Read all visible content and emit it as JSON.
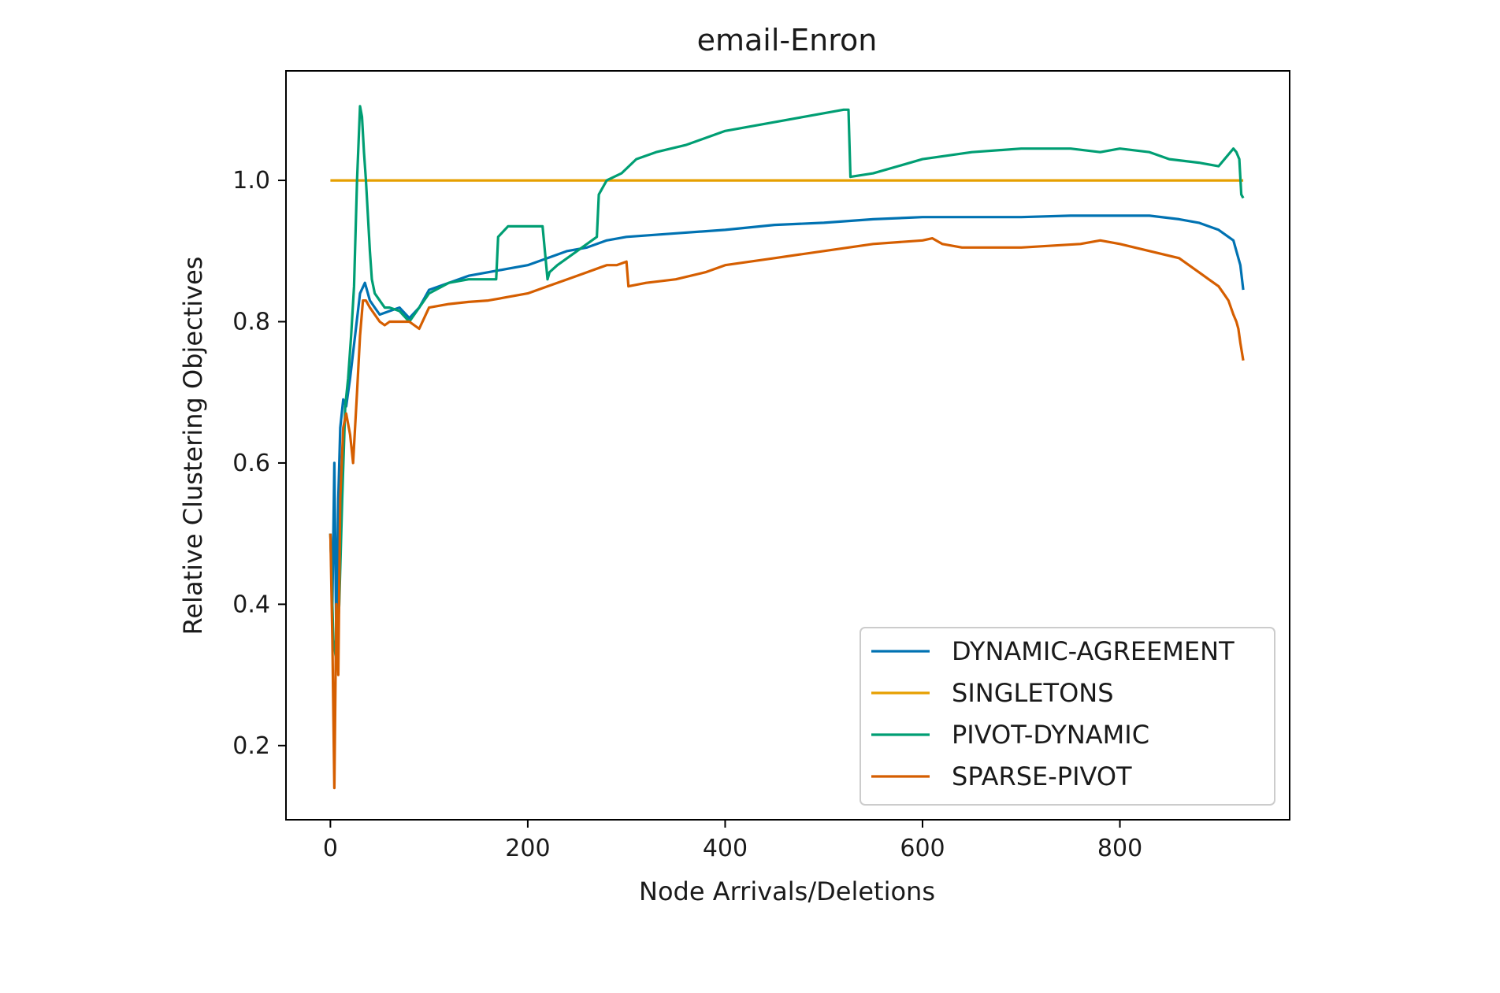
{
  "chart_data": {
    "type": "line",
    "title": "email-Enron",
    "xlabel": "Node Arrivals/Deletions",
    "ylabel": "Relative Clustering Objectives",
    "xlim": [
      -45,
      972
    ],
    "ylim": [
      0.095,
      1.155
    ],
    "xticks": [
      0,
      200,
      400,
      600,
      800
    ],
    "xtick_labels": [
      "0",
      "200",
      "400",
      "600",
      "800"
    ],
    "yticks": [
      0.2,
      0.4,
      0.6,
      0.8,
      1.0
    ],
    "ytick_labels": [
      "0.2",
      "0.4",
      "0.6",
      "0.8",
      "1.0"
    ],
    "grid": false,
    "legend_position": "lower-right",
    "series": [
      {
        "name": "DYNAMIC-AGREEMENT",
        "color": "#0072b2",
        "x": [
          0,
          2,
          4,
          6,
          8,
          10,
          13,
          16,
          20,
          25,
          30,
          35,
          40,
          45,
          50,
          60,
          70,
          80,
          90,
          100,
          120,
          140,
          160,
          180,
          200,
          220,
          240,
          260,
          280,
          300,
          350,
          400,
          450,
          500,
          550,
          600,
          650,
          700,
          750,
          800,
          830,
          860,
          880,
          900,
          915,
          922,
          925
        ],
        "y": [
          0.5,
          0.4,
          0.6,
          0.35,
          0.55,
          0.65,
          0.69,
          0.68,
          0.72,
          0.78,
          0.84,
          0.855,
          0.83,
          0.82,
          0.81,
          0.815,
          0.82,
          0.805,
          0.82,
          0.845,
          0.855,
          0.865,
          0.87,
          0.875,
          0.88,
          0.89,
          0.9,
          0.905,
          0.915,
          0.92,
          0.925,
          0.93,
          0.937,
          0.94,
          0.945,
          0.948,
          0.948,
          0.948,
          0.95,
          0.95,
          0.95,
          0.945,
          0.94,
          0.93,
          0.915,
          0.88,
          0.845
        ]
      },
      {
        "name": "SINGLETONS",
        "color": "#e69f00",
        "x": [
          0,
          925
        ],
        "y": [
          1.0,
          1.0
        ]
      },
      {
        "name": "PIVOT-DYNAMIC",
        "color": "#009e73",
        "x": [
          0,
          3,
          6,
          9,
          12,
          15,
          18,
          21,
          24,
          27,
          30,
          32,
          34,
          36,
          38,
          40,
          42,
          45,
          50,
          55,
          60,
          70,
          80,
          90,
          100,
          120,
          140,
          160,
          168,
          170,
          180,
          200,
          215,
          220,
          222,
          230,
          250,
          270,
          272,
          280,
          295,
          310,
          330,
          360,
          400,
          440,
          480,
          500,
          520,
          525,
          527,
          550,
          600,
          650,
          700,
          750,
          780,
          800,
          830,
          850,
          880,
          900,
          915,
          918,
          921,
          923,
          925
        ],
        "y": [
          0.5,
          0.35,
          0.32,
          0.4,
          0.55,
          0.68,
          0.72,
          0.78,
          0.85,
          1.0,
          1.105,
          1.09,
          1.04,
          1.0,
          0.95,
          0.9,
          0.86,
          0.84,
          0.83,
          0.82,
          0.82,
          0.815,
          0.8,
          0.82,
          0.84,
          0.855,
          0.86,
          0.86,
          0.86,
          0.92,
          0.935,
          0.935,
          0.935,
          0.86,
          0.87,
          0.88,
          0.9,
          0.92,
          0.98,
          1.0,
          1.01,
          1.03,
          1.04,
          1.05,
          1.07,
          1.08,
          1.09,
          1.095,
          1.1,
          1.1,
          1.005,
          1.01,
          1.03,
          1.04,
          1.045,
          1.045,
          1.04,
          1.045,
          1.04,
          1.03,
          1.025,
          1.02,
          1.045,
          1.04,
          1.03,
          0.98,
          0.975
        ]
      },
      {
        "name": "SPARSE-PIVOT",
        "color": "#d55e00",
        "x": [
          0,
          2,
          4,
          6,
          8,
          10,
          13,
          16,
          20,
          23,
          27,
          30,
          33,
          36,
          40,
          45,
          50,
          55,
          60,
          70,
          80,
          90,
          100,
          120,
          140,
          160,
          180,
          200,
          220,
          240,
          260,
          280,
          290,
          300,
          302,
          320,
          350,
          380,
          400,
          450,
          500,
          550,
          600,
          610,
          620,
          640,
          700,
          760,
          780,
          800,
          830,
          860,
          880,
          890,
          900,
          905,
          910,
          915,
          918,
          920,
          922,
          925
        ],
        "y": [
          0.5,
          0.35,
          0.14,
          0.4,
          0.3,
          0.55,
          0.65,
          0.67,
          0.64,
          0.6,
          0.7,
          0.78,
          0.83,
          0.83,
          0.82,
          0.81,
          0.8,
          0.795,
          0.8,
          0.8,
          0.8,
          0.79,
          0.82,
          0.825,
          0.828,
          0.83,
          0.835,
          0.84,
          0.85,
          0.86,
          0.87,
          0.88,
          0.88,
          0.885,
          0.85,
          0.855,
          0.86,
          0.87,
          0.88,
          0.89,
          0.9,
          0.91,
          0.915,
          0.918,
          0.91,
          0.905,
          0.905,
          0.91,
          0.915,
          0.91,
          0.9,
          0.89,
          0.87,
          0.86,
          0.85,
          0.84,
          0.83,
          0.81,
          0.8,
          0.79,
          0.77,
          0.745
        ]
      }
    ]
  }
}
